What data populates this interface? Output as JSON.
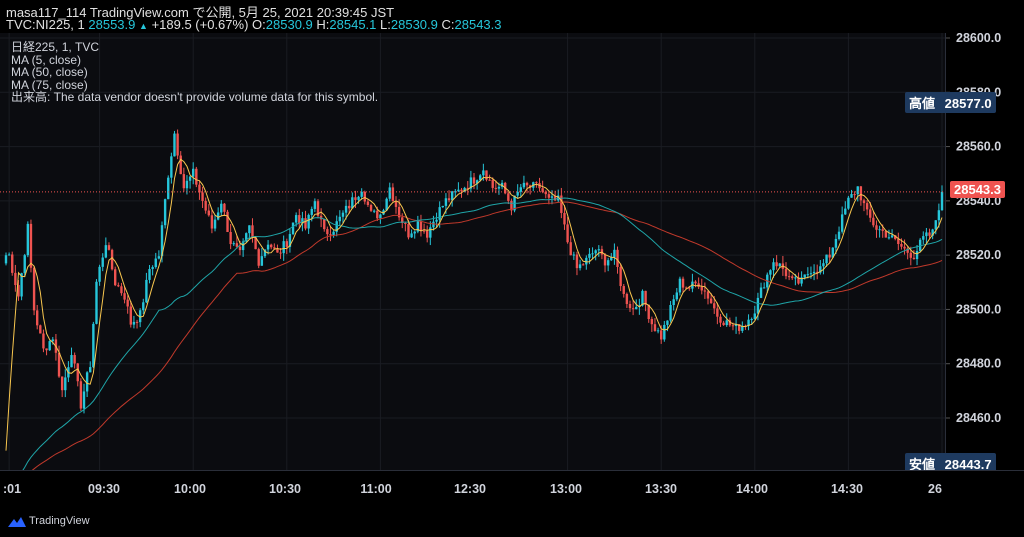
{
  "header": {
    "line1": "masa117_114 TradingView.com で公開, 5月 25, 2021 20:39:45 JST",
    "symbol": "TVC:NI225, 1",
    "last": "28553.9",
    "change": "+189.5 (+0.67%)",
    "o_label": "O:",
    "o_value": "28530.9",
    "h_label": "H:",
    "h_value": "28545.1",
    "l_label": "L:",
    "l_value": "28530.9",
    "c_label": "C:",
    "c_value": "28543.3",
    "up_arrow": "▲"
  },
  "legend": {
    "title": "日経225, 1, TVC",
    "ma5": "MA (5, close)",
    "ma50": "MA (50, close)",
    "ma75": "MA (75, close)",
    "volume": "出来高: The data vendor doesn't provide volume data for this symbol."
  },
  "price_tags": {
    "high_label": "高値",
    "high_value": "28577.0",
    "current_value": "28543.3",
    "low_label": "安値",
    "low_value": "28443.7"
  },
  "footer": {
    "brand": "TradingView"
  },
  "colors": {
    "up": "#26c6da",
    "down": "#ef5350",
    "ma5": "#f9c74f",
    "ma50": "#1fa5a8",
    "ma75": "#c0392b",
    "tag_bg": "#1e3a5f",
    "current_bg": "#ef5350"
  },
  "chart_data": {
    "type": "candlestick",
    "interval": "1 minute",
    "y_axis": {
      "ylim": [
        28440,
        28605
      ],
      "ticks": [
        "28460.0",
        "28480.0",
        "28500.0",
        "28520.0",
        "28540.0",
        "28560.0",
        "28580.0",
        "28600.0"
      ]
    },
    "x_axis": {
      "ticks": [
        ":01",
        "09:30",
        "10:00",
        "10:30",
        "11:00",
        "12:30",
        "13:00",
        "13:30",
        "14:00",
        "14:30",
        "26"
      ]
    },
    "close_path": [
      [
        "09:01",
        28520
      ],
      [
        "09:04",
        28505
      ],
      [
        "09:07",
        28530
      ],
      [
        "09:09",
        28500
      ],
      [
        "09:12",
        28485
      ],
      [
        "09:15",
        28490
      ],
      [
        "09:18",
        28470
      ],
      [
        "09:21",
        28485
      ],
      [
        "09:24",
        28465
      ],
      [
        "09:27",
        28480
      ],
      [
        "09:29",
        28510
      ],
      [
        "09:32",
        28525
      ],
      [
        "09:35",
        28510
      ],
      [
        "09:38",
        28505
      ],
      [
        "09:40",
        28495
      ],
      [
        "09:43",
        28498
      ],
      [
        "09:46",
        28515
      ],
      [
        "09:49",
        28520
      ],
      [
        "09:52",
        28550
      ],
      [
        "09:54",
        28565
      ],
      [
        "09:57",
        28545
      ],
      [
        "10:00",
        28550
      ],
      [
        "10:03",
        28540
      ],
      [
        "10:06",
        28530
      ],
      [
        "10:09",
        28540
      ],
      [
        "10:12",
        28525
      ],
      [
        "10:15",
        28520
      ],
      [
        "10:18",
        28530
      ],
      [
        "10:21",
        28518
      ],
      [
        "10:24",
        28525
      ],
      [
        "10:27",
        28520
      ],
      [
        "10:30",
        28525
      ],
      [
        "10:33",
        28535
      ],
      [
        "10:36",
        28530
      ],
      [
        "10:39",
        28540
      ],
      [
        "10:42",
        28528
      ],
      [
        "10:45",
        28530
      ],
      [
        "10:48",
        28535
      ],
      [
        "10:51",
        28540
      ],
      [
        "10:54",
        28545
      ],
      [
        "10:57",
        28535
      ],
      [
        "11:00",
        28535
      ],
      [
        "11:03",
        28545
      ],
      [
        "11:06",
        28535
      ],
      [
        "11:09",
        28528
      ],
      [
        "11:12",
        28532
      ],
      [
        "11:15",
        28528
      ],
      [
        "11:18",
        28535
      ],
      [
        "11:21",
        28540
      ],
      [
        "12:30",
        28548
      ],
      [
        "12:33",
        28552
      ],
      [
        "12:36",
        28545
      ],
      [
        "12:39",
        28545
      ],
      [
        "12:42",
        28538
      ],
      [
        "12:45",
        28545
      ],
      [
        "12:48",
        28545
      ],
      [
        "12:51",
        28545
      ],
      [
        "12:54",
        28540
      ],
      [
        "12:57",
        28540
      ],
      [
        "13:00",
        28525
      ],
      [
        "13:03",
        28515
      ],
      [
        "13:06",
        28518
      ],
      [
        "13:09",
        28522
      ],
      [
        "13:12",
        28518
      ],
      [
        "13:15",
        28520
      ],
      [
        "13:18",
        28505
      ],
      [
        "13:21",
        28500
      ],
      [
        "13:24",
        28505
      ],
      [
        "13:27",
        28495
      ],
      [
        "13:30",
        28490
      ],
      [
        "13:33",
        28500
      ],
      [
        "13:36",
        28510
      ],
      [
        "13:39",
        28508
      ],
      [
        "13:42",
        28510
      ],
      [
        "13:45",
        28505
      ],
      [
        "13:48",
        28498
      ],
      [
        "13:51",
        28495
      ],
      [
        "13:54",
        28493
      ],
      [
        "13:57",
        28495
      ],
      [
        "14:00",
        28500
      ],
      [
        "14:03",
        28510
      ],
      [
        "14:06",
        28518
      ],
      [
        "14:09",
        28515
      ],
      [
        "14:12",
        28510
      ],
      [
        "14:15",
        28510
      ],
      [
        "14:18",
        28515
      ],
      [
        "14:21",
        28515
      ],
      [
        "14:24",
        28520
      ],
      [
        "14:27",
        28530
      ],
      [
        "14:30",
        28540
      ],
      [
        "14:33",
        28545
      ],
      [
        "14:36",
        28535
      ],
      [
        "14:39",
        28530
      ],
      [
        "14:42",
        28528
      ],
      [
        "14:45",
        28525
      ],
      [
        "14:48",
        28522
      ],
      [
        "14:51",
        28520
      ],
      [
        "14:54",
        28526
      ],
      [
        "14:57",
        28528
      ],
      [
        "15:00",
        28543.3
      ]
    ],
    "series": [
      {
        "name": "MA (5, close)"
      },
      {
        "name": "MA (50, close)"
      },
      {
        "name": "MA (75, close)"
      }
    ]
  }
}
